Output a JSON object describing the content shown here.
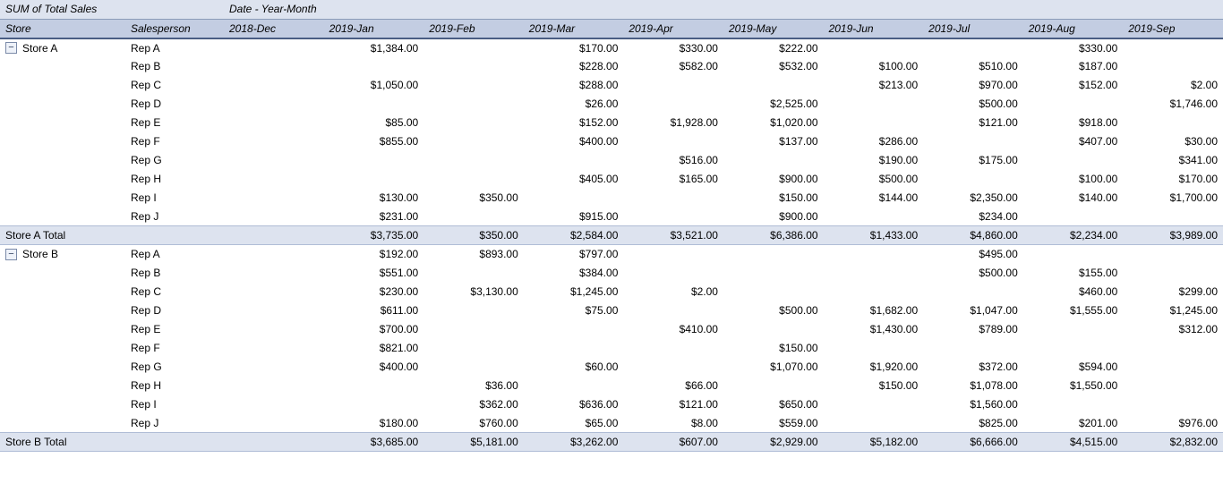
{
  "table": {
    "type": "pivot-table",
    "measure_label": "SUM of Total Sales",
    "col_dim_label": "Date - Year-Month",
    "row_dims": [
      "Store",
      "Salesperson"
    ],
    "dates": [
      "2018-Dec",
      "2019-Jan",
      "2019-Feb",
      "2019-Mar",
      "2019-Apr",
      "2019-May",
      "2019-Jun",
      "2019-Jul",
      "2019-Aug",
      "2019-Sep"
    ],
    "colors": {
      "header_top_bg": "#dde3ef",
      "header_bot_bg": "#c3cde2",
      "header_border": "#4a5d84",
      "total_bg": "#dde3ef",
      "row_bg": "#ffffff",
      "text": "#000000"
    },
    "stores": [
      {
        "name": "Store A",
        "collapsed": false,
        "rows": [
          {
            "rep": "Rep A",
            "v": [
              "",
              "$1,384.00",
              "",
              "$170.00",
              "$330.00",
              "$222.00",
              "",
              "",
              "$330.00",
              ""
            ]
          },
          {
            "rep": "Rep B",
            "v": [
              "",
              "",
              "",
              "$228.00",
              "$582.00",
              "$532.00",
              "$100.00",
              "$510.00",
              "$187.00",
              ""
            ]
          },
          {
            "rep": "Rep C",
            "v": [
              "",
              "$1,050.00",
              "",
              "$288.00",
              "",
              "",
              "$213.00",
              "$970.00",
              "$152.00",
              "$2.00"
            ]
          },
          {
            "rep": "Rep D",
            "v": [
              "",
              "",
              "",
              "$26.00",
              "",
              "$2,525.00",
              "",
              "$500.00",
              "",
              "$1,746.00"
            ]
          },
          {
            "rep": "Rep E",
            "v": [
              "",
              "$85.00",
              "",
              "$152.00",
              "$1,928.00",
              "$1,020.00",
              "",
              "$121.00",
              "$918.00",
              ""
            ]
          },
          {
            "rep": "Rep F",
            "v": [
              "",
              "$855.00",
              "",
              "$400.00",
              "",
              "$137.00",
              "$286.00",
              "",
              "$407.00",
              "$30.00"
            ]
          },
          {
            "rep": "Rep G",
            "v": [
              "",
              "",
              "",
              "",
              "$516.00",
              "",
              "$190.00",
              "$175.00",
              "",
              "$341.00"
            ]
          },
          {
            "rep": "Rep H",
            "v": [
              "",
              "",
              "",
              "$405.00",
              "$165.00",
              "$900.00",
              "$500.00",
              "",
              "$100.00",
              "$170.00"
            ]
          },
          {
            "rep": "Rep I",
            "v": [
              "",
              "$130.00",
              "$350.00",
              "",
              "",
              "$150.00",
              "$144.00",
              "$2,350.00",
              "$140.00",
              "$1,700.00"
            ]
          },
          {
            "rep": "Rep J",
            "v": [
              "",
              "$231.00",
              "",
              "$915.00",
              "",
              "$900.00",
              "",
              "$234.00",
              "",
              ""
            ]
          }
        ],
        "total_label": "Store A Total",
        "total": [
          "",
          "$3,735.00",
          "$350.00",
          "$2,584.00",
          "$3,521.00",
          "$6,386.00",
          "$1,433.00",
          "$4,860.00",
          "$2,234.00",
          "$3,989.00"
        ]
      },
      {
        "name": "Store B",
        "collapsed": false,
        "rows": [
          {
            "rep": "Rep A",
            "v": [
              "",
              "$192.00",
              "$893.00",
              "$797.00",
              "",
              "",
              "",
              "$495.00",
              "",
              ""
            ]
          },
          {
            "rep": "Rep B",
            "v": [
              "",
              "$551.00",
              "",
              "$384.00",
              "",
              "",
              "",
              "$500.00",
              "$155.00",
              ""
            ]
          },
          {
            "rep": "Rep C",
            "v": [
              "",
              "$230.00",
              "$3,130.00",
              "$1,245.00",
              "$2.00",
              "",
              "",
              "",
              "$460.00",
              "$299.00"
            ]
          },
          {
            "rep": "Rep D",
            "v": [
              "",
              "$611.00",
              "",
              "$75.00",
              "",
              "$500.00",
              "$1,682.00",
              "$1,047.00",
              "$1,555.00",
              "$1,245.00"
            ]
          },
          {
            "rep": "Rep E",
            "v": [
              "",
              "$700.00",
              "",
              "",
              "$410.00",
              "",
              "$1,430.00",
              "$789.00",
              "",
              "$312.00"
            ]
          },
          {
            "rep": "Rep F",
            "v": [
              "",
              "$821.00",
              "",
              "",
              "",
              "$150.00",
              "",
              "",
              "",
              ""
            ]
          },
          {
            "rep": "Rep G",
            "v": [
              "",
              "$400.00",
              "",
              "$60.00",
              "",
              "$1,070.00",
              "$1,920.00",
              "$372.00",
              "$594.00",
              ""
            ]
          },
          {
            "rep": "Rep H",
            "v": [
              "",
              "",
              "$36.00",
              "",
              "$66.00",
              "",
              "$150.00",
              "$1,078.00",
              "$1,550.00",
              ""
            ]
          },
          {
            "rep": "Rep I",
            "v": [
              "",
              "",
              "$362.00",
              "$636.00",
              "$121.00",
              "$650.00",
              "",
              "$1,560.00",
              "",
              ""
            ]
          },
          {
            "rep": "Rep J",
            "v": [
              "",
              "$180.00",
              "$760.00",
              "$65.00",
              "$8.00",
              "$559.00",
              "",
              "$825.00",
              "$201.00",
              "$976.00"
            ]
          }
        ],
        "total_label": "Store B Total",
        "total": [
          "",
          "$3,685.00",
          "$5,181.00",
          "$3,262.00",
          "$607.00",
          "$2,929.00",
          "$5,182.00",
          "$6,666.00",
          "$4,515.00",
          "$2,832.00"
        ]
      }
    ]
  }
}
